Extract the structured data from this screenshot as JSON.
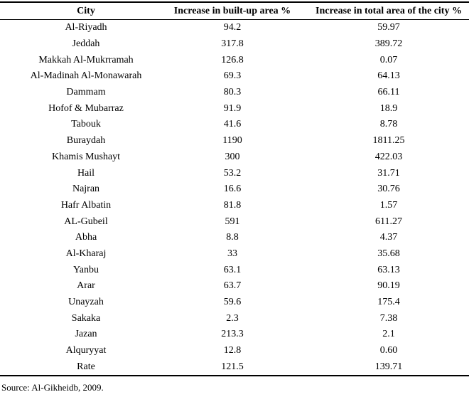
{
  "table": {
    "columns": [
      "City",
      "Increase in built-up area %",
      "Increase in total area of the city %"
    ],
    "rows": [
      [
        "Al-Riyadh",
        "94.2",
        "59.97"
      ],
      [
        "Jeddah",
        "317.8",
        "389.72"
      ],
      [
        "Makkah Al-Mukrramah",
        "126.8",
        "0.07"
      ],
      [
        "Al-Madinah Al-Monawarah",
        "69.3",
        "64.13"
      ],
      [
        "Dammam",
        "80.3",
        "66.11"
      ],
      [
        "Hofof & Mubarraz",
        "91.9",
        "18.9"
      ],
      [
        "Tabouk",
        "41.6",
        "8.78"
      ],
      [
        "Buraydah",
        "1190",
        "1811.25"
      ],
      [
        "Khamis Mushayt",
        "300",
        "422.03"
      ],
      [
        "Hail",
        "53.2",
        "31.71"
      ],
      [
        "Najran",
        "16.6",
        "30.76"
      ],
      [
        "Hafr Albatin",
        "81.8",
        "1.57"
      ],
      [
        "AL-Gubeil",
        "591",
        "611.27"
      ],
      [
        "Abha",
        "8.8",
        "4.37"
      ],
      [
        "Al-Kharaj",
        "33",
        "35.68"
      ],
      [
        "Yanbu",
        "63.1",
        "63.13"
      ],
      [
        "Arar",
        "63.7",
        "90.19"
      ],
      [
        "Unayzah",
        "59.6",
        "175.4"
      ],
      [
        "Sakaka",
        "2.3",
        "7.38"
      ],
      [
        "Jazan",
        "213.3",
        "2.1"
      ],
      [
        "Alquryyat",
        "12.8",
        "0.60"
      ],
      [
        "Rate",
        "121.5",
        "139.71"
      ]
    ],
    "source": "Source: Al-Gikheidb, 2009.",
    "colors": {
      "text": "#000000",
      "border": "#000000",
      "background": "#ffffff"
    }
  }
}
